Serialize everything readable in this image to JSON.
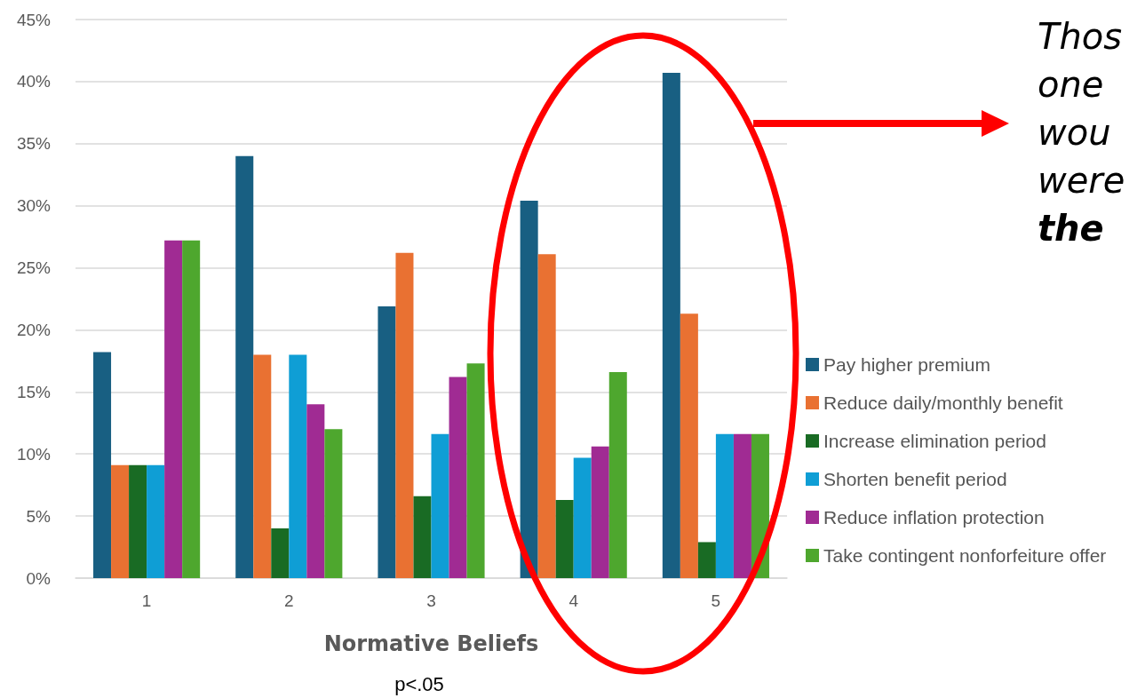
{
  "chart_data": {
    "type": "bar",
    "xlabel": "Normative Beliefs",
    "categories": [
      "1",
      "2",
      "3",
      "4",
      "5"
    ],
    "series": [
      {
        "name": "Pay higher premium",
        "color": "#185f82",
        "values": [
          18.2,
          34.0,
          21.9,
          30.4,
          40.7
        ]
      },
      {
        "name": "Reduce daily/monthly benefit",
        "color": "#e97132",
        "values": [
          9.1,
          18.0,
          26.2,
          26.1,
          21.3
        ]
      },
      {
        "name": "Increase elimination period",
        "color": "#196b24",
        "values": [
          9.1,
          4.0,
          6.6,
          6.3,
          2.9
        ]
      },
      {
        "name": "Shorten benefit period",
        "color": "#0f9ed5",
        "values": [
          9.1,
          18.0,
          11.6,
          9.7,
          11.6
        ]
      },
      {
        "name": "Reduce inflation protection",
        "color": "#a02b93",
        "values": [
          27.2,
          14.0,
          16.2,
          10.6,
          11.6
        ]
      },
      {
        "name": "Take contingent nonforfeiture offer",
        "color": "#4ea72e",
        "values": [
          27.2,
          12.0,
          17.3,
          16.6,
          11.6
        ]
      }
    ],
    "ylim": [
      0,
      45
    ],
    "yticks": [
      {
        "value": 0,
        "label": "0%"
      },
      {
        "value": 5,
        "label": "5%"
      },
      {
        "value": 10,
        "label": "10%"
      },
      {
        "value": 15,
        "label": "15%"
      },
      {
        "value": 20,
        "label": "20%"
      },
      {
        "value": 25,
        "label": "25%"
      },
      {
        "value": 30,
        "label": "30%"
      },
      {
        "value": 35,
        "label": "35%"
      },
      {
        "value": 40,
        "label": "40%"
      },
      {
        "value": 45,
        "label": "45%"
      }
    ],
    "grid": "y",
    "legend": "right",
    "annotations": [
      "p<.05",
      "Thos",
      "one",
      "wou",
      "were",
      "the"
    ]
  }
}
